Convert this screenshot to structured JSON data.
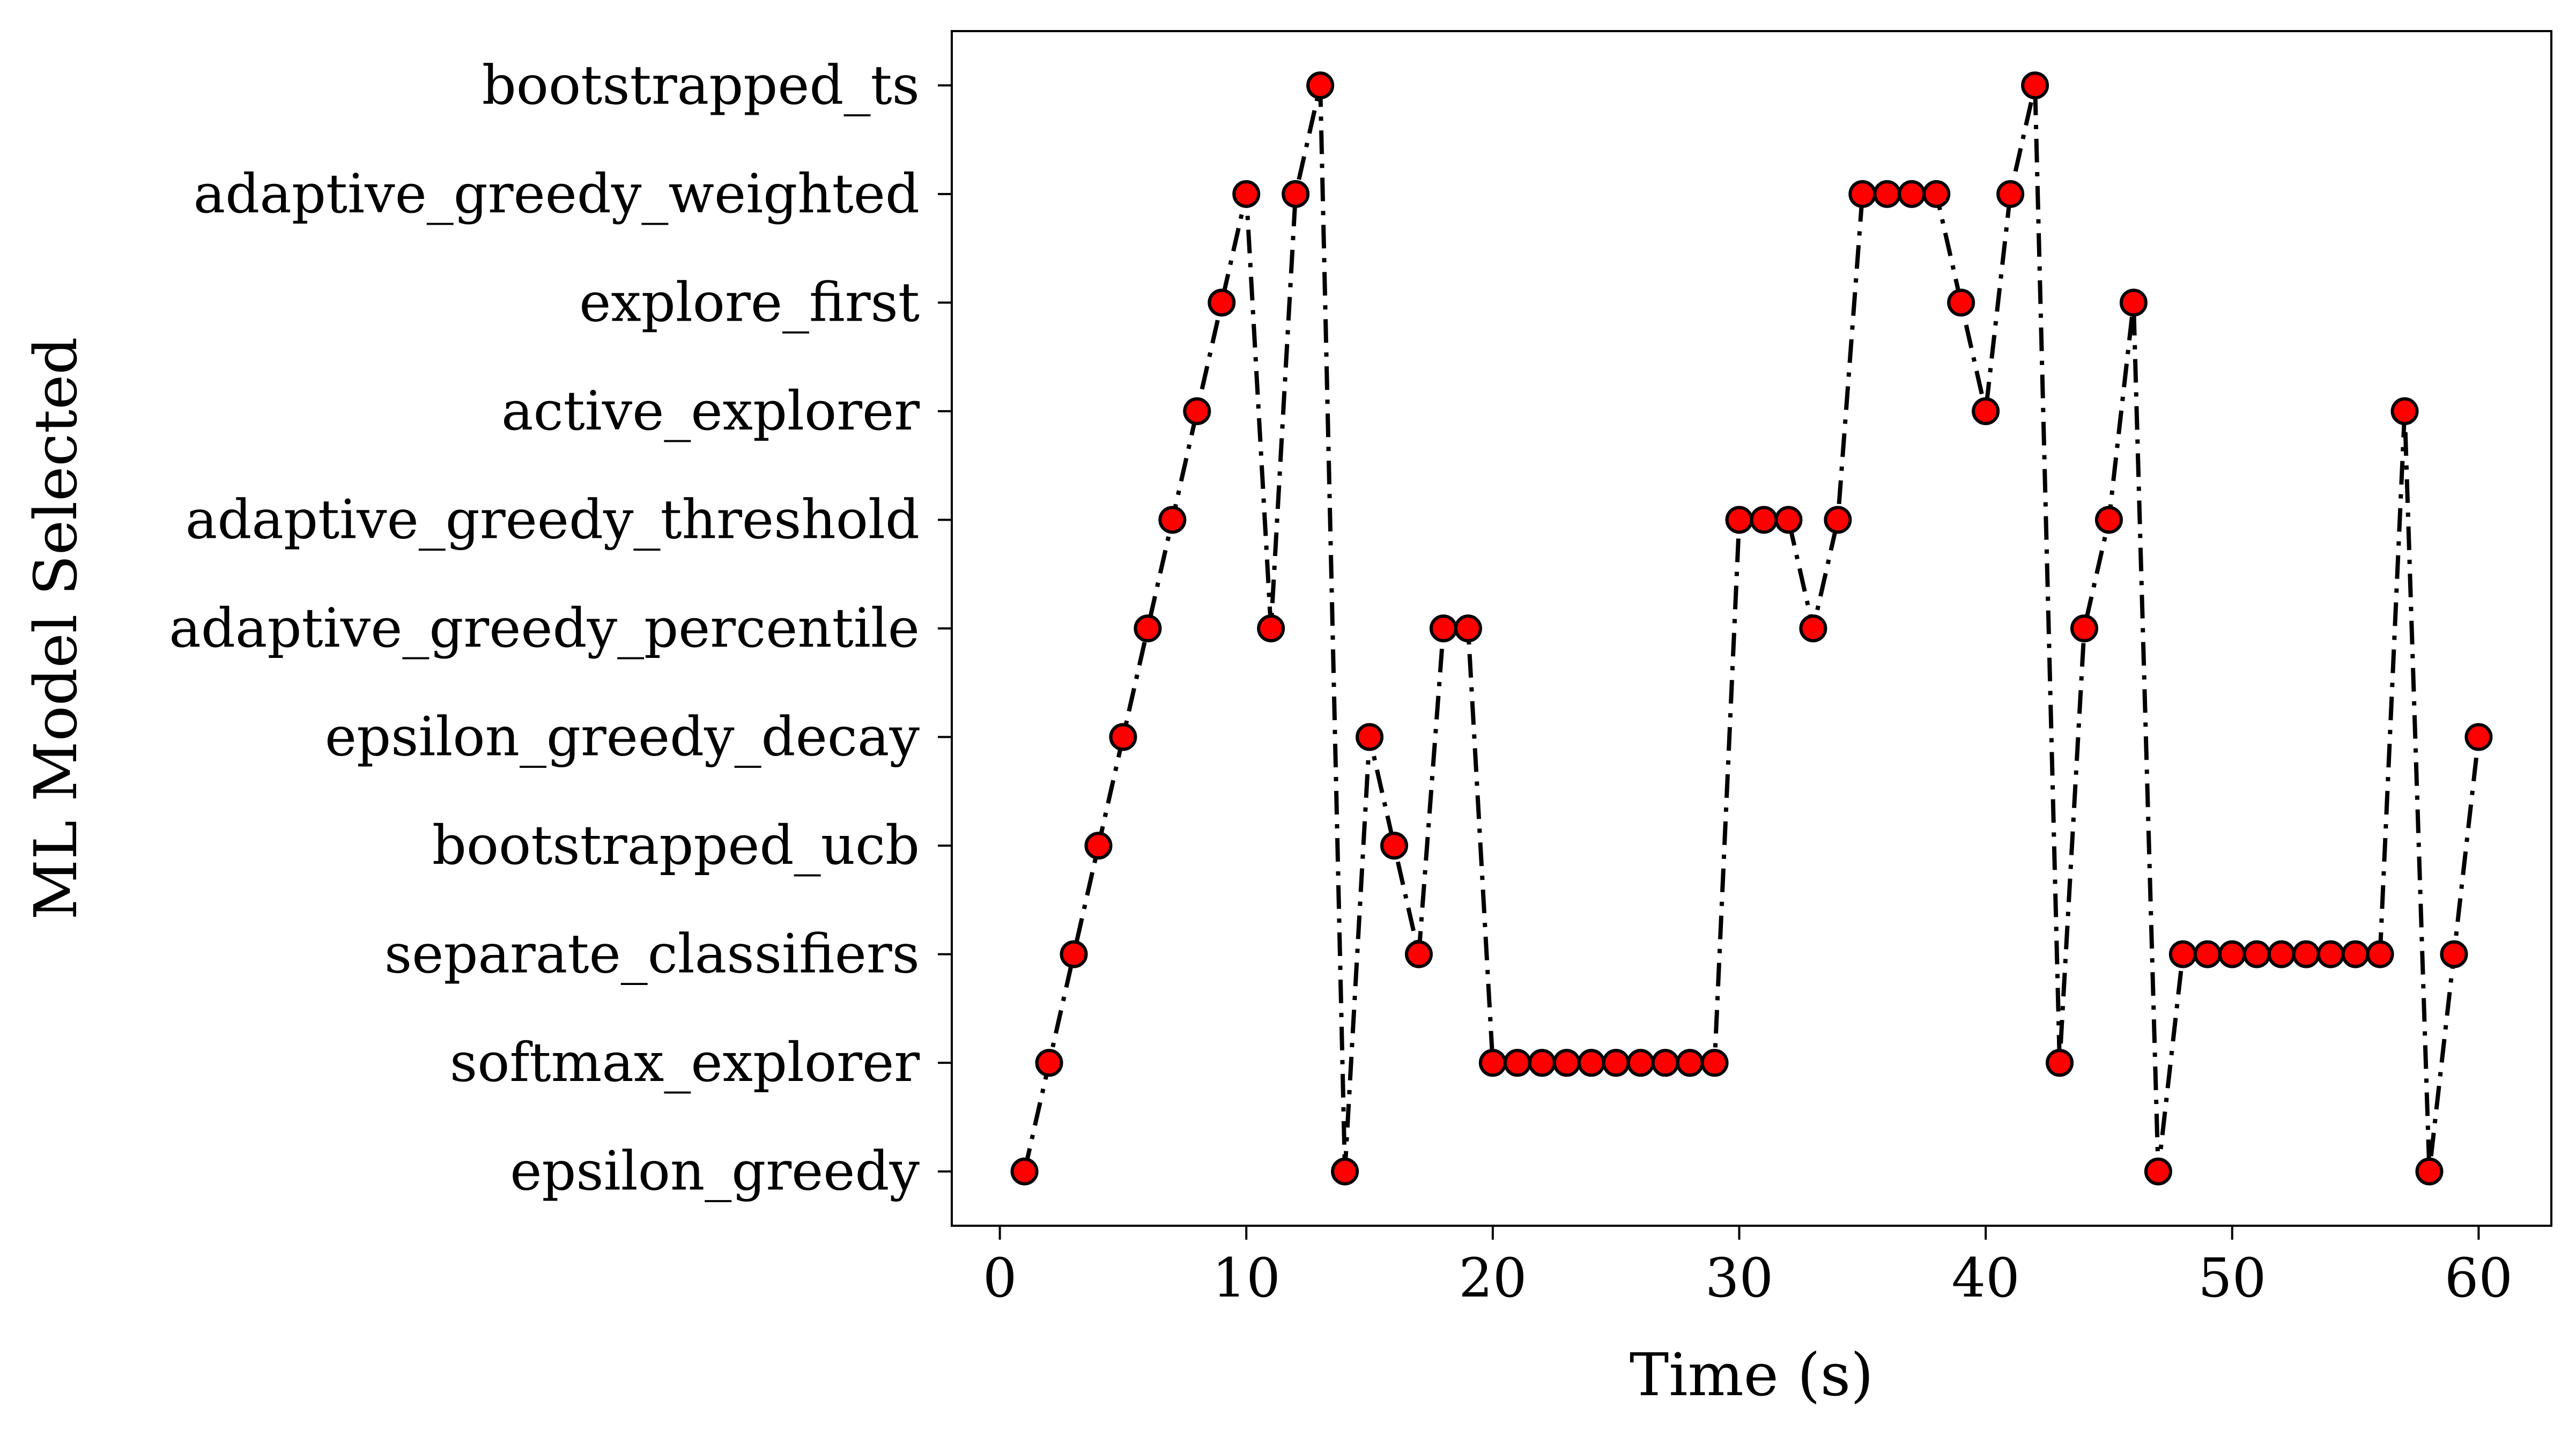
{
  "chart_data": {
    "type": "line",
    "xlabel": "Time (s)",
    "ylabel": "ML Model Selected",
    "xlim": [
      -1.95,
      62.95
    ],
    "x_ticks": [
      0,
      10,
      20,
      30,
      40,
      50,
      60
    ],
    "categories": [
      "epsilon_greedy",
      "softmax_explorer",
      "separate_classifiers",
      "bootstrapped_ucb",
      "epsilon_greedy_decay",
      "adaptive_greedy_percentile",
      "adaptive_greedy_threshold",
      "active_explorer",
      "explore_first",
      "adaptive_greedy_weighted",
      "bootstrapped_ts"
    ],
    "series": [
      {
        "x": [
          1,
          2,
          3,
          4,
          5,
          6,
          7,
          8,
          9,
          10,
          11,
          12,
          13,
          14,
          15,
          16,
          17,
          18,
          19,
          20,
          21,
          22,
          23,
          24,
          25,
          26,
          27,
          28,
          29,
          30,
          31,
          32,
          33,
          34,
          35,
          36,
          37,
          38,
          39,
          40,
          41,
          42,
          43,
          44,
          45,
          46,
          47,
          48,
          49,
          50,
          51,
          52,
          53,
          54,
          55,
          56,
          57,
          58,
          59,
          60
        ],
        "y": [
          "epsilon_greedy",
          "softmax_explorer",
          "separate_classifiers",
          "bootstrapped_ucb",
          "epsilon_greedy_decay",
          "adaptive_greedy_percentile",
          "adaptive_greedy_threshold",
          "active_explorer",
          "explore_first",
          "adaptive_greedy_weighted",
          "adaptive_greedy_percentile",
          "adaptive_greedy_weighted",
          "bootstrapped_ts",
          "epsilon_greedy",
          "epsilon_greedy_decay",
          "bootstrapped_ucb",
          "separate_classifiers",
          "adaptive_greedy_percentile",
          "adaptive_greedy_percentile",
          "softmax_explorer",
          "softmax_explorer",
          "softmax_explorer",
          "softmax_explorer",
          "softmax_explorer",
          "softmax_explorer",
          "softmax_explorer",
          "softmax_explorer",
          "softmax_explorer",
          "softmax_explorer",
          "adaptive_greedy_threshold",
          "adaptive_greedy_threshold",
          "adaptive_greedy_threshold",
          "adaptive_greedy_percentile",
          "adaptive_greedy_threshold",
          "adaptive_greedy_weighted",
          "adaptive_greedy_weighted",
          "adaptive_greedy_weighted",
          "adaptive_greedy_weighted",
          "explore_first",
          "active_explorer",
          "adaptive_greedy_weighted",
          "bootstrapped_ts",
          "softmax_explorer",
          "adaptive_greedy_percentile",
          "adaptive_greedy_threshold",
          "explore_first",
          "epsilon_greedy",
          "separate_classifiers",
          "separate_classifiers",
          "separate_classifiers",
          "separate_classifiers",
          "separate_classifiers",
          "separate_classifiers",
          "separate_classifiers",
          "separate_classifiers",
          "separate_classifiers",
          "active_explorer",
          "epsilon_greedy",
          "separate_classifiers",
          "epsilon_greedy_decay"
        ],
        "line_color": "#000000",
        "line_style": "dash-dot",
        "marker_fill": "#ff0000",
        "marker_edge": "#000000"
      }
    ],
    "grid": false,
    "legend": "none"
  }
}
